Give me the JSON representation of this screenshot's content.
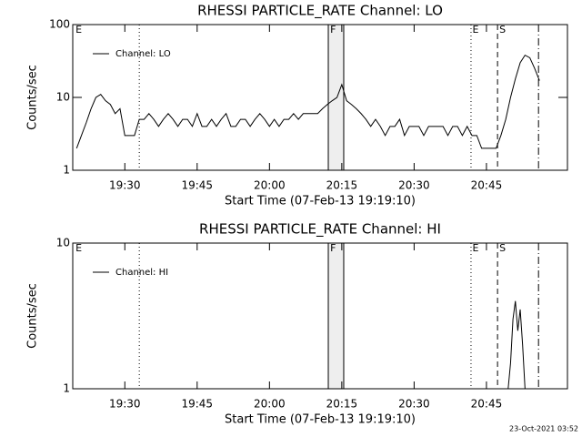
{
  "chart_data": [
    {
      "type": "line",
      "title": "RHESSI PARTICLE_RATE Channel: LO",
      "xlabel": "Start Time (07-Feb-13 19:19:10)",
      "ylabel": "Counts/sec",
      "xlim": [
        1159.2,
        1261.8
      ],
      "xticks": [
        {
          "value": 1170,
          "label": "19:30"
        },
        {
          "value": 1185,
          "label": "19:45"
        },
        {
          "value": 1200,
          "label": "20:00"
        },
        {
          "value": 1215,
          "label": "20:15"
        },
        {
          "value": 1230,
          "label": "20:30"
        },
        {
          "value": 1245,
          "label": "20:45"
        }
      ],
      "ylim": [
        1,
        100
      ],
      "yticks": [
        1,
        10,
        100
      ],
      "log_y": true,
      "legend": "upper left",
      "series": [
        {
          "name": "Channel: LO",
          "color": "#000000",
          "x": [
            1160,
            1161,
            1162,
            1163,
            1164,
            1165,
            1166,
            1167,
            1168,
            1169,
            1170,
            1171,
            1172,
            1173,
            1174,
            1175,
            1176,
            1177,
            1178,
            1179,
            1180,
            1181,
            1182,
            1183,
            1184,
            1185,
            1186,
            1187,
            1188,
            1189,
            1190,
            1191,
            1192,
            1193,
            1194,
            1195,
            1196,
            1197,
            1198,
            1199,
            1200,
            1201,
            1202,
            1203,
            1204,
            1205,
            1206,
            1207,
            1208,
            1209,
            1210,
            1211,
            1212,
            1213,
            1214,
            1215,
            1216,
            1217,
            1218,
            1219,
            1220,
            1221,
            1222,
            1223,
            1224,
            1225,
            1226,
            1227,
            1228,
            1229,
            1230,
            1231,
            1232,
            1233,
            1234,
            1235,
            1236,
            1237,
            1238,
            1239,
            1240,
            1241,
            1242,
            1243,
            1244,
            1245,
            1246,
            1247,
            1248,
            1249,
            1250,
            1251,
            1252,
            1253,
            1254,
            1255,
            1256
          ],
          "values": [
            2,
            3,
            4.5,
            7,
            10,
            11,
            9,
            8,
            6,
            7,
            3,
            3,
            3,
            5,
            5,
            6,
            5,
            4,
            5,
            6,
            5,
            4,
            5,
            5,
            4,
            6,
            4,
            4,
            5,
            4,
            5,
            6,
            4,
            4,
            5,
            5,
            4,
            5,
            6,
            5,
            4,
            5,
            4,
            5,
            5,
            6,
            5,
            6,
            6,
            6,
            6,
            7,
            8,
            9,
            10,
            15,
            9,
            8,
            7,
            6,
            5,
            4,
            5,
            4,
            3,
            4,
            4,
            5,
            3,
            4,
            4,
            4,
            3,
            4,
            4,
            4,
            4,
            3,
            4,
            4,
            3,
            4,
            3,
            3,
            2,
            2,
            2,
            2,
            3,
            5,
            10,
            18,
            30,
            38,
            35,
            25,
            17
          ]
        }
      ],
      "vlines": [
        {
          "x": 1173,
          "style": "dotted"
        },
        {
          "x": 1212.2,
          "style": "solid"
        },
        {
          "x": 1215.4,
          "style": "solid"
        },
        {
          "x": 1241.8,
          "style": "dotted"
        },
        {
          "x": 1247.3,
          "style": "dashed"
        },
        {
          "x": 1255.8,
          "style": "dashdot"
        }
      ],
      "shade": [
        1212.2,
        1215.4
      ],
      "annotations": [
        {
          "text": "E",
          "x": 1159.6
        },
        {
          "text": "F",
          "x": 1212.4
        },
        {
          "text": "E",
          "x": 1241.9
        },
        {
          "text": "S",
          "x": 1247.5
        }
      ]
    },
    {
      "type": "line",
      "title": "RHESSI PARTICLE_RATE Channel: HI",
      "xlabel": "Start Time (07-Feb-13 19:19:10)",
      "ylabel": "Counts/sec",
      "xlim": [
        1159.2,
        1261.8
      ],
      "xticks": [
        {
          "value": 1170,
          "label": "19:30"
        },
        {
          "value": 1185,
          "label": "19:45"
        },
        {
          "value": 1200,
          "label": "20:00"
        },
        {
          "value": 1215,
          "label": "20:15"
        },
        {
          "value": 1230,
          "label": "20:30"
        },
        {
          "value": 1245,
          "label": "20:45"
        }
      ],
      "ylim": [
        1,
        10
      ],
      "yticks": [
        1,
        10
      ],
      "log_y": true,
      "legend": "upper left",
      "series": [
        {
          "name": "Channel: HI",
          "color": "#000000",
          "x": [
            1249.5,
            1250,
            1250.5,
            1251,
            1251.5,
            1252,
            1252.5,
            1253
          ],
          "values": [
            1,
            1.5,
            3,
            4,
            2.5,
            3.5,
            2,
            1
          ]
        }
      ],
      "vlines": [
        {
          "x": 1173,
          "style": "dotted"
        },
        {
          "x": 1212.2,
          "style": "solid"
        },
        {
          "x": 1215.4,
          "style": "solid"
        },
        {
          "x": 1241.8,
          "style": "dotted"
        },
        {
          "x": 1247.3,
          "style": "dashed"
        },
        {
          "x": 1255.8,
          "style": "dashdot"
        }
      ],
      "shade": [
        1212.2,
        1215.4
      ],
      "annotations": [
        {
          "text": "E",
          "x": 1159.6
        },
        {
          "text": "F",
          "x": 1212.4
        },
        {
          "text": "E",
          "x": 1241.9
        },
        {
          "text": "S",
          "x": 1247.5
        }
      ]
    }
  ],
  "footer": "23-Oct-2021 03:52"
}
